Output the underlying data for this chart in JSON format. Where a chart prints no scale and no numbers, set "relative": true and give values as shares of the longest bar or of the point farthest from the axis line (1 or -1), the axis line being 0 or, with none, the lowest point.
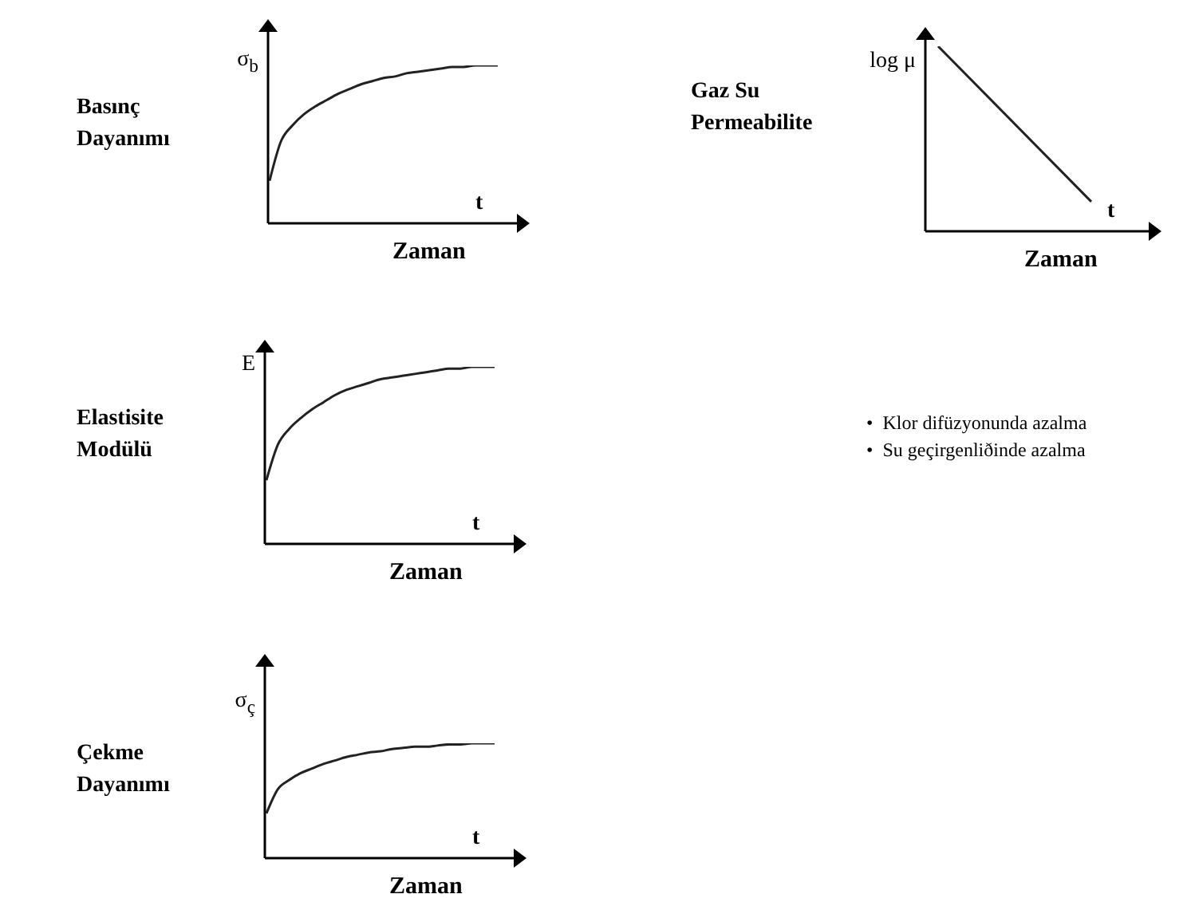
{
  "chart_data": [
    {
      "type": "line",
      "relative": true,
      "title": "Basınç Dayanımı",
      "ylabel": "σ$_{b}$",
      "xlabel": "Zaman",
      "annotations": [
        "t"
      ],
      "marker": "none",
      "line_style": "solid",
      "categories": [
        null,
        null,
        null,
        null,
        null,
        null,
        null,
        null,
        null,
        null,
        null,
        null,
        null,
        null,
        null,
        null,
        null,
        null,
        null,
        null,
        null
      ],
      "series": [
        {
          "color": "#222222",
          "values": [
            0.27,
            0.52,
            0.62,
            0.69,
            0.74,
            0.78,
            0.82,
            0.85,
            0.88,
            0.9,
            0.92,
            0.93,
            0.95,
            0.96,
            0.97,
            0.98,
            0.99,
            0.99,
            1,
            1,
            1
          ]
        }
      ]
    },
    {
      "type": "line",
      "relative": true,
      "title": "Gaz Su Permeabilite",
      "ylabel": "log μ",
      "xlabel": "Zaman",
      "annotations": [
        "t",
        "•  Klor difüzyonunda azalma",
        "•  Su geçirgenliðinde azalma"
      ],
      "marker": "none",
      "line_style": "solid",
      "categories": [
        null,
        null
      ],
      "series": [
        {
          "color": "#222222",
          "values": [
            1,
            0.16
          ]
        }
      ]
    },
    {
      "type": "line",
      "relative": true,
      "title": "Elastisite Modülü",
      "ylabel": "E",
      "xlabel": "Zaman",
      "annotations": [
        "t"
      ],
      "marker": "none",
      "line_style": "solid",
      "categories": [
        null,
        null,
        null,
        null,
        null,
        null,
        null,
        null,
        null,
        null,
        null,
        null,
        null,
        null,
        null,
        null,
        null,
        null,
        null,
        null,
        null
      ],
      "series": [
        {
          "color": "#222222",
          "values": [
            0.36,
            0.56,
            0.65,
            0.71,
            0.76,
            0.8,
            0.84,
            0.87,
            0.89,
            0.91,
            0.93,
            0.94,
            0.95,
            0.96,
            0.97,
            0.98,
            0.99,
            0.99,
            1,
            1,
            1
          ]
        }
      ]
    },
    {
      "type": "line",
      "relative": true,
      "title": "Çekme Dayanımı",
      "ylabel": "σ$_{ç}$",
      "xlabel": "Zaman",
      "annotations": [
        "t"
      ],
      "marker": "none",
      "line_style": "solid",
      "categories": [
        null,
        null,
        null,
        null,
        null,
        null,
        null,
        null,
        null,
        null,
        null,
        null,
        null,
        null,
        null,
        null,
        null,
        null,
        null,
        null,
        null
      ],
      "series": [
        {
          "color": "#222222",
          "values": [
            0.39,
            0.6,
            0.68,
            0.74,
            0.78,
            0.82,
            0.85,
            0.88,
            0.9,
            0.92,
            0.93,
            0.95,
            0.96,
            0.97,
            0.97,
            0.98,
            0.99,
            0.99,
            1,
            1,
            1
          ]
        }
      ]
    }
  ]
}
